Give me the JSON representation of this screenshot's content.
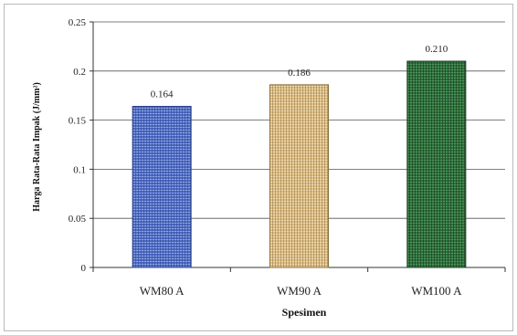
{
  "chart_data": {
    "type": "bar",
    "title": "",
    "xlabel": "Spesimen",
    "ylabel": "Harga Rata-Rata Impak (J/mm²)",
    "categories": [
      "WM80 A",
      "WM90 A",
      "WM100 A"
    ],
    "values": [
      0.164,
      0.186,
      0.21
    ],
    "data_labels": [
      "0.164",
      "0.186",
      "0.210"
    ],
    "ylim": [
      0,
      0.25
    ],
    "yticks": [
      0,
      0.05,
      0.1,
      0.15,
      0.2,
      0.25
    ],
    "ytick_labels": [
      "0",
      "0.05",
      "0.1",
      "0.15",
      "0.2",
      "0.25"
    ],
    "grid": true,
    "legend": "none",
    "colors": {
      "bar_fills": [
        "#4d6bc2",
        "#d9bb84",
        "#2f6f3d"
      ],
      "bar_strokes": [
        "#2a3f86",
        "#8a6e3c",
        "#173a1f"
      ],
      "grid": "#555555",
      "axis": "#333333"
    }
  }
}
